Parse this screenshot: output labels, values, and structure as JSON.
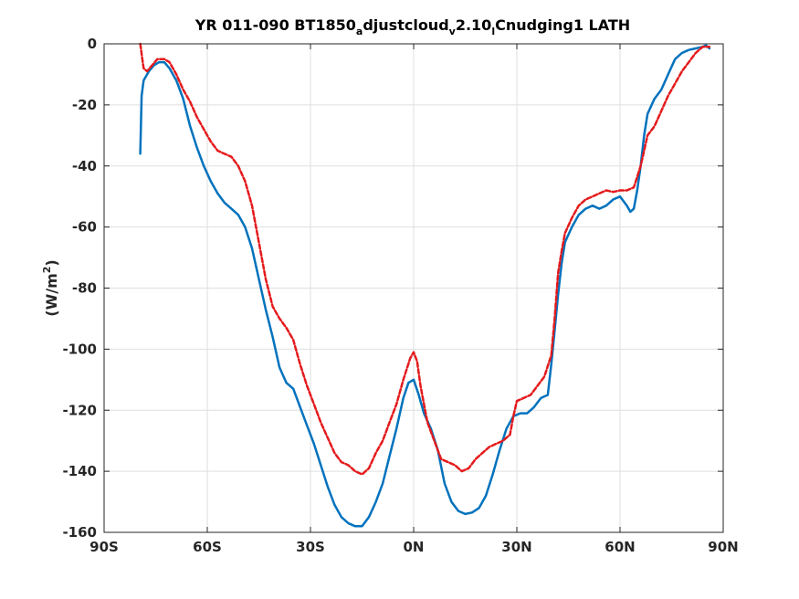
{
  "chart_data": {
    "type": "line",
    "title": {
      "parts": [
        {
          "text": "YR 011-090 BT1850",
          "sub": false
        },
        {
          "text": "a",
          "sub": true
        },
        {
          "text": "djustcloud",
          "sub": false
        },
        {
          "text": "v",
          "sub": true
        },
        {
          "text": "2.10",
          "sub": false
        },
        {
          "text": "l",
          "sub": true
        },
        {
          "text": "Cnudging1 LATH",
          "sub": false
        }
      ]
    },
    "xlabel": "",
    "ylabel": {
      "base": "(W/m",
      "sup": "2",
      "close": ")"
    },
    "xlim": [
      -90,
      90
    ],
    "ylim": [
      -160,
      0
    ],
    "xticks": [
      {
        "value": -90,
        "label": "90S"
      },
      {
        "value": -60,
        "label": "60S"
      },
      {
        "value": -30,
        "label": "30S"
      },
      {
        "value": 0,
        "label": "0N"
      },
      {
        "value": 30,
        "label": "30N"
      },
      {
        "value": 60,
        "label": "60N"
      },
      {
        "value": 90,
        "label": "90N"
      }
    ],
    "yticks": [
      {
        "value": 0,
        "label": "0"
      },
      {
        "value": -20,
        "label": "-20"
      },
      {
        "value": -40,
        "label": "-40"
      },
      {
        "value": -60,
        "label": "-60"
      },
      {
        "value": -80,
        "label": "-80"
      },
      {
        "value": -100,
        "label": "-100"
      },
      {
        "value": -120,
        "label": "-120"
      },
      {
        "value": -140,
        "label": "-140"
      },
      {
        "value": -160,
        "label": "-160"
      }
    ],
    "grid": true,
    "series": [
      {
        "color": "#0072bd",
        "style": "solid",
        "points": [
          [
            -79.5,
            -36
          ],
          [
            -79.1,
            -17
          ],
          [
            -78.5,
            -12
          ],
          [
            -77,
            -9
          ],
          [
            -75.5,
            -7
          ],
          [
            -74,
            -6
          ],
          [
            -72.5,
            -6
          ],
          [
            -71,
            -8
          ],
          [
            -69,
            -12
          ],
          [
            -67,
            -18
          ],
          [
            -65,
            -27
          ],
          [
            -63,
            -34
          ],
          [
            -61,
            -40
          ],
          [
            -59,
            -45
          ],
          [
            -57,
            -49
          ],
          [
            -55,
            -52
          ],
          [
            -53,
            -54
          ],
          [
            -51,
            -56
          ],
          [
            -49,
            -60
          ],
          [
            -47,
            -67
          ],
          [
            -45,
            -77
          ],
          [
            -43,
            -87
          ],
          [
            -41,
            -96
          ],
          [
            -39,
            -106
          ],
          [
            -37,
            -111
          ],
          [
            -35,
            -113
          ],
          [
            -33,
            -119
          ],
          [
            -31,
            -125
          ],
          [
            -29,
            -131
          ],
          [
            -27,
            -138
          ],
          [
            -25,
            -145
          ],
          [
            -23,
            -151
          ],
          [
            -21,
            -155
          ],
          [
            -19,
            -157
          ],
          [
            -17,
            -158
          ],
          [
            -15,
            -158
          ],
          [
            -13,
            -155
          ],
          [
            -11,
            -150
          ],
          [
            -9,
            -144
          ],
          [
            -7,
            -135
          ],
          [
            -5,
            -126
          ],
          [
            -3,
            -116
          ],
          [
            -1.5,
            -111
          ],
          [
            0,
            -110
          ],
          [
            1.5,
            -115
          ],
          [
            3,
            -121
          ],
          [
            5,
            -126
          ],
          [
            7,
            -133
          ],
          [
            9,
            -144
          ],
          [
            11,
            -150
          ],
          [
            13,
            -153
          ],
          [
            15,
            -154
          ],
          [
            17,
            -153.5
          ],
          [
            19,
            -152
          ],
          [
            21,
            -148
          ],
          [
            23,
            -141
          ],
          [
            25,
            -133
          ],
          [
            27,
            -126
          ],
          [
            29,
            -122
          ],
          [
            31,
            -121
          ],
          [
            33,
            -121
          ],
          [
            35,
            -119
          ],
          [
            37,
            -116
          ],
          [
            39,
            -115
          ],
          [
            40,
            -105
          ],
          [
            41,
            -94
          ],
          [
            42,
            -82
          ],
          [
            43,
            -72
          ],
          [
            44,
            -65
          ],
          [
            46,
            -60
          ],
          [
            48,
            -56
          ],
          [
            50,
            -54
          ],
          [
            52,
            -53
          ],
          [
            54,
            -54
          ],
          [
            56,
            -53
          ],
          [
            58,
            -51
          ],
          [
            60,
            -50
          ],
          [
            62,
            -53
          ],
          [
            63,
            -55
          ],
          [
            64,
            -54
          ],
          [
            65,
            -48
          ],
          [
            66,
            -40
          ],
          [
            67,
            -30
          ],
          [
            68,
            -23
          ],
          [
            70,
            -18
          ],
          [
            72,
            -15
          ],
          [
            74,
            -10
          ],
          [
            76,
            -5
          ],
          [
            78,
            -3
          ],
          [
            80,
            -2
          ],
          [
            82,
            -1.5
          ],
          [
            84,
            -1
          ],
          [
            85,
            -0.5
          ],
          [
            86,
            -1.5
          ]
        ]
      },
      {
        "color": "#e41a1c",
        "style": "dashed",
        "points": [
          [
            -79.5,
            0
          ],
          [
            -79,
            -4
          ],
          [
            -78.5,
            -8
          ],
          [
            -77.5,
            -9
          ],
          [
            -76,
            -7
          ],
          [
            -74.5,
            -5
          ],
          [
            -72.5,
            -5
          ],
          [
            -71,
            -6
          ],
          [
            -69,
            -10
          ],
          [
            -67,
            -15
          ],
          [
            -65,
            -19
          ],
          [
            -63,
            -24
          ],
          [
            -61,
            -28
          ],
          [
            -59,
            -32
          ],
          [
            -57,
            -35
          ],
          [
            -55,
            -36
          ],
          [
            -53,
            -37
          ],
          [
            -51,
            -40
          ],
          [
            -49,
            -45
          ],
          [
            -47,
            -53
          ],
          [
            -45,
            -65
          ],
          [
            -43,
            -77
          ],
          [
            -41,
            -86
          ],
          [
            -39,
            -90
          ],
          [
            -37,
            -93
          ],
          [
            -35,
            -97
          ],
          [
            -33,
            -105
          ],
          [
            -31,
            -112
          ],
          [
            -29,
            -118
          ],
          [
            -27,
            -124
          ],
          [
            -25,
            -129
          ],
          [
            -23,
            -134
          ],
          [
            -21,
            -137
          ],
          [
            -19,
            -138
          ],
          [
            -17,
            -140
          ],
          [
            -15,
            -141
          ],
          [
            -13,
            -139
          ],
          [
            -11,
            -134
          ],
          [
            -9,
            -130
          ],
          [
            -7,
            -124
          ],
          [
            -5,
            -118
          ],
          [
            -3,
            -110
          ],
          [
            -1,
            -103
          ],
          [
            0,
            -101
          ],
          [
            1,
            -104
          ],
          [
            2,
            -112
          ],
          [
            3,
            -118
          ],
          [
            4,
            -124
          ],
          [
            6,
            -130
          ],
          [
            8,
            -136
          ],
          [
            10,
            -137
          ],
          [
            12,
            -138
          ],
          [
            14,
            -140
          ],
          [
            16,
            -139
          ],
          [
            18,
            -136
          ],
          [
            20,
            -134
          ],
          [
            22,
            -132
          ],
          [
            24,
            -131
          ],
          [
            26,
            -130
          ],
          [
            28,
            -128
          ],
          [
            29,
            -122
          ],
          [
            30,
            -117
          ],
          [
            32,
            -116
          ],
          [
            34,
            -115
          ],
          [
            36,
            -112
          ],
          [
            38,
            -109
          ],
          [
            40,
            -102
          ],
          [
            41,
            -90
          ],
          [
            42,
            -75
          ],
          [
            43,
            -68
          ],
          [
            44,
            -62
          ],
          [
            46,
            -57
          ],
          [
            48,
            -53
          ],
          [
            50,
            -51
          ],
          [
            52,
            -50
          ],
          [
            54,
            -49
          ],
          [
            56,
            -48
          ],
          [
            58,
            -48.5
          ],
          [
            60,
            -48
          ],
          [
            62,
            -48
          ],
          [
            64,
            -47
          ],
          [
            66,
            -40
          ],
          [
            67,
            -35
          ],
          [
            68,
            -30
          ],
          [
            70,
            -27
          ],
          [
            72,
            -22
          ],
          [
            74,
            -17
          ],
          [
            76,
            -13
          ],
          [
            78,
            -9
          ],
          [
            80,
            -6
          ],
          [
            82,
            -3
          ],
          [
            84,
            -1
          ],
          [
            86,
            -1
          ]
        ]
      }
    ]
  }
}
